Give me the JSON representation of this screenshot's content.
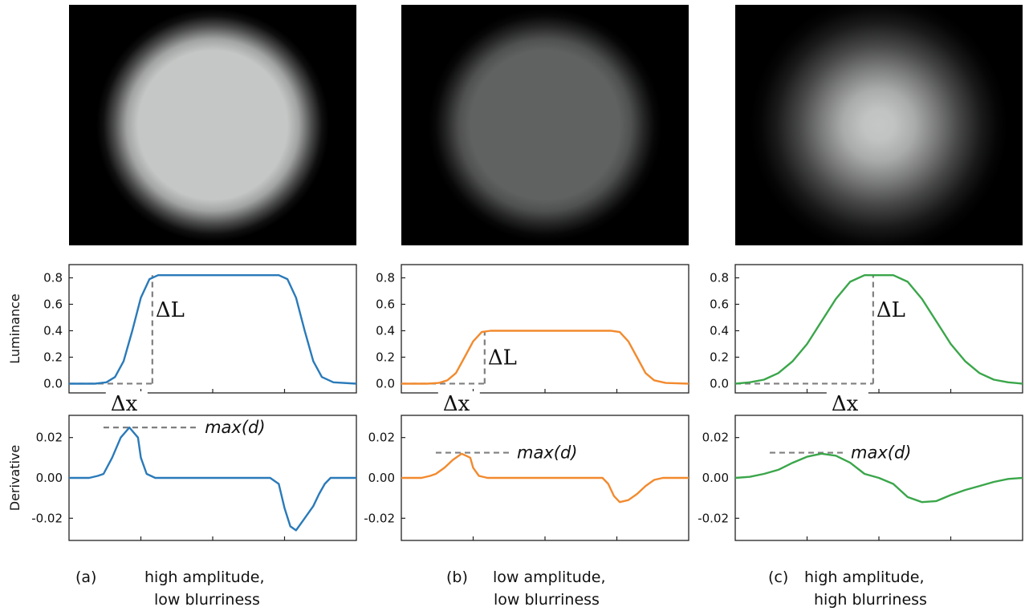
{
  "panels": [
    {
      "tag": "(a)",
      "caption_line1": "high amplitude,",
      "caption_line2": "low blurriness",
      "circle": {
        "peak_gray": 0.82,
        "blur": "low"
      }
    },
    {
      "tag": "(b)",
      "caption_line1": "low amplitude,",
      "caption_line2": "low blurriness",
      "circle": {
        "peak_gray": 0.4,
        "blur": "low"
      }
    },
    {
      "tag": "(c)",
      "caption_line1": "high amplitude,",
      "caption_line2": "high blurriness",
      "circle": {
        "peak_gray": 0.82,
        "blur": "high"
      }
    }
  ],
  "annotations": {
    "delta_l": "ΔL",
    "delta_x": "Δx",
    "max_d": "max(d)"
  },
  "colors": {
    "a": "#2a7ab9",
    "b": "#f28a2e",
    "c": "#3aa64a",
    "guide": "#7f7f7f"
  },
  "chart_data": [
    {
      "type": "line",
      "panel": "a",
      "ylabel": "Luminance",
      "yticks": [
        "0.0",
        "0.2",
        "0.4",
        "0.6",
        "0.8"
      ],
      "ylim": [
        -0.07,
        0.9
      ],
      "xlim": [
        0,
        1
      ],
      "series": [
        {
          "x": [
            0,
            0.09,
            0.13,
            0.16,
            0.19,
            0.22,
            0.25,
            0.28,
            0.31,
            0.5,
            0.73,
            0.76,
            0.79,
            0.82,
            0.85,
            0.88,
            0.92,
            1
          ],
          "values": [
            0,
            0,
            0.01,
            0.05,
            0.17,
            0.4,
            0.65,
            0.79,
            0.82,
            0.82,
            0.82,
            0.79,
            0.65,
            0.4,
            0.17,
            0.05,
            0.01,
            0
          ]
        }
      ],
      "guides": {
        "delta_l_x": 0.29,
        "delta_l_top": 0.82,
        "delta_x_start": 0.0
      }
    },
    {
      "type": "line",
      "panel": "b",
      "ylabel": "",
      "yticks": [
        "0.0",
        "0.2",
        "0.4",
        "0.6",
        "0.8"
      ],
      "ylim": [
        -0.07,
        0.9
      ],
      "xlim": [
        0,
        1
      ],
      "series": [
        {
          "x": [
            0,
            0.09,
            0.13,
            0.16,
            0.19,
            0.22,
            0.25,
            0.28,
            0.31,
            0.5,
            0.73,
            0.76,
            0.79,
            0.82,
            0.85,
            0.88,
            0.92,
            1
          ],
          "values": [
            0,
            0,
            0.005,
            0.025,
            0.08,
            0.2,
            0.32,
            0.39,
            0.4,
            0.4,
            0.4,
            0.39,
            0.32,
            0.2,
            0.08,
            0.025,
            0.005,
            0
          ]
        }
      ],
      "guides": {
        "delta_l_x": 0.29,
        "delta_l_top": 0.4,
        "delta_x_start": 0.0
      }
    },
    {
      "type": "line",
      "panel": "c",
      "ylabel": "",
      "yticks": [
        "0.0",
        "0.2",
        "0.4",
        "0.6",
        "0.8"
      ],
      "ylim": [
        -0.07,
        0.9
      ],
      "xlim": [
        0,
        1
      ],
      "series": [
        {
          "x": [
            0,
            0.05,
            0.1,
            0.15,
            0.2,
            0.25,
            0.3,
            0.35,
            0.4,
            0.45,
            0.5,
            0.55,
            0.6,
            0.65,
            0.7,
            0.75,
            0.8,
            0.85,
            0.9,
            0.95,
            1
          ],
          "values": [
            0,
            0.01,
            0.03,
            0.08,
            0.17,
            0.3,
            0.47,
            0.64,
            0.77,
            0.82,
            0.82,
            0.82,
            0.77,
            0.64,
            0.47,
            0.3,
            0.17,
            0.08,
            0.03,
            0.01,
            0
          ]
        }
      ],
      "guides": {
        "delta_l_x": 0.48,
        "delta_l_top": 0.82,
        "delta_x_start": 0.0
      }
    },
    {
      "type": "line",
      "panel": "a",
      "ylabel": "Derivative",
      "yticks": [
        "0.02",
        "0.00",
        "-0.02"
      ],
      "ytick_values": [
        0.02,
        0.0,
        -0.02
      ],
      "ylim": [
        -0.031,
        0.031
      ],
      "xlim": [
        0,
        1
      ],
      "series": [
        {
          "x": [
            0,
            0.07,
            0.1,
            0.12,
            0.15,
            0.18,
            0.21,
            0.24,
            0.25,
            0.27,
            0.3,
            0.31,
            0.6,
            0.7,
            0.73,
            0.75,
            0.77,
            0.79,
            0.82,
            0.85,
            0.87,
            0.89,
            0.91,
            0.94,
            1
          ],
          "values": [
            0,
            0,
            0.001,
            0.002,
            0.01,
            0.02,
            0.025,
            0.02,
            0.01,
            0.002,
            0,
            0,
            0,
            0,
            -0.003,
            -0.015,
            -0.024,
            -0.026,
            -0.02,
            -0.014,
            -0.008,
            -0.003,
            0,
            0,
            0
          ]
        }
      ],
      "guides": {
        "max_from": 0.12,
        "max_to": 0.45,
        "max_value": 0.025
      }
    },
    {
      "type": "line",
      "panel": "b",
      "ylabel": "",
      "yticks": [
        "0.02",
        "0.00",
        "-0.02"
      ],
      "ytick_values": [
        0.02,
        0.0,
        -0.02
      ],
      "ylim": [
        -0.031,
        0.031
      ],
      "xlim": [
        0,
        1
      ],
      "series": [
        {
          "x": [
            0,
            0.07,
            0.1,
            0.12,
            0.15,
            0.18,
            0.21,
            0.24,
            0.25,
            0.27,
            0.3,
            0.31,
            0.6,
            0.7,
            0.72,
            0.74,
            0.76,
            0.79,
            0.82,
            0.85,
            0.88,
            0.91,
            1
          ],
          "values": [
            0,
            0,
            0.001,
            0.002,
            0.005,
            0.009,
            0.012,
            0.01,
            0.005,
            0.001,
            0,
            0,
            0,
            0,
            -0.003,
            -0.009,
            -0.012,
            -0.011,
            -0.008,
            -0.004,
            -0.001,
            0,
            0
          ]
        }
      ],
      "guides": {
        "max_from": 0.12,
        "max_to": 0.38,
        "max_value": 0.0125
      }
    },
    {
      "type": "line",
      "panel": "c",
      "ylabel": "",
      "yticks": [
        "0.02",
        "0.00",
        "-0.02"
      ],
      "ytick_values": [
        0.02,
        0.0,
        -0.02
      ],
      "ylim": [
        -0.031,
        0.031
      ],
      "xlim": [
        0,
        1
      ],
      "series": [
        {
          "x": [
            0,
            0.05,
            0.1,
            0.15,
            0.2,
            0.25,
            0.3,
            0.35,
            0.4,
            0.45,
            0.5,
            0.55,
            0.6,
            0.65,
            0.7,
            0.75,
            0.8,
            0.85,
            0.9,
            0.95,
            1
          ],
          "values": [
            0,
            0.0005,
            0.002,
            0.004,
            0.0075,
            0.0105,
            0.012,
            0.011,
            0.0075,
            0.002,
            0,
            -0.003,
            -0.0095,
            -0.012,
            -0.0115,
            -0.0085,
            -0.006,
            -0.004,
            -0.002,
            -0.0005,
            0
          ]
        }
      ],
      "guides": {
        "max_from": 0.12,
        "max_to": 0.38,
        "max_value": 0.0125
      }
    }
  ]
}
